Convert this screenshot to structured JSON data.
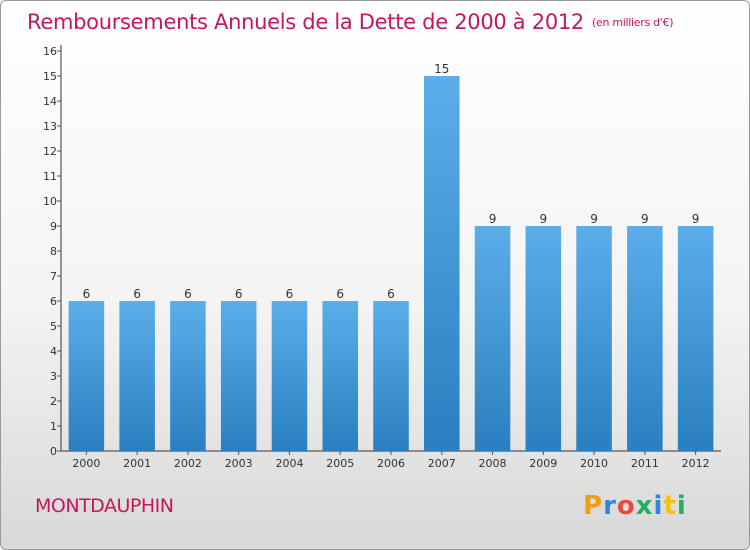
{
  "title": "Remboursements Annuels de la Dette de 2000 à 2012",
  "subtitle": "(en milliers d'€)",
  "town": "MONTDAUPHIN",
  "brand": {
    "letters": [
      "P",
      "r",
      "o",
      "x",
      "i",
      "t",
      "i"
    ],
    "colors": [
      "#f39c12",
      "#2e86de",
      "#e74c3c",
      "#27ae60",
      "#2e86de",
      "#f1c40f",
      "#27ae60"
    ]
  },
  "colors": {
    "title": "#c2185b",
    "bar_top": "#5aaeea",
    "bar_bottom": "#2a7fc0",
    "axis": "#333333",
    "grid_tick": "#555555"
  },
  "chart_data": {
    "type": "bar",
    "categories": [
      "2000",
      "2001",
      "2002",
      "2003",
      "2004",
      "2005",
      "2006",
      "2007",
      "2008",
      "2009",
      "2010",
      "2011",
      "2012"
    ],
    "values": [
      6,
      6,
      6,
      6,
      6,
      6,
      6,
      15,
      9,
      9,
      9,
      9,
      9
    ],
    "y_ticks": [
      "0",
      "1",
      "2",
      "3",
      "4",
      "5",
      "6",
      "7",
      "8",
      "9",
      "10",
      "11",
      "12",
      "13",
      "14",
      "15",
      "16"
    ],
    "ylim": [
      0,
      16
    ],
    "grid": false,
    "legend": "none",
    "data_labels": true
  }
}
